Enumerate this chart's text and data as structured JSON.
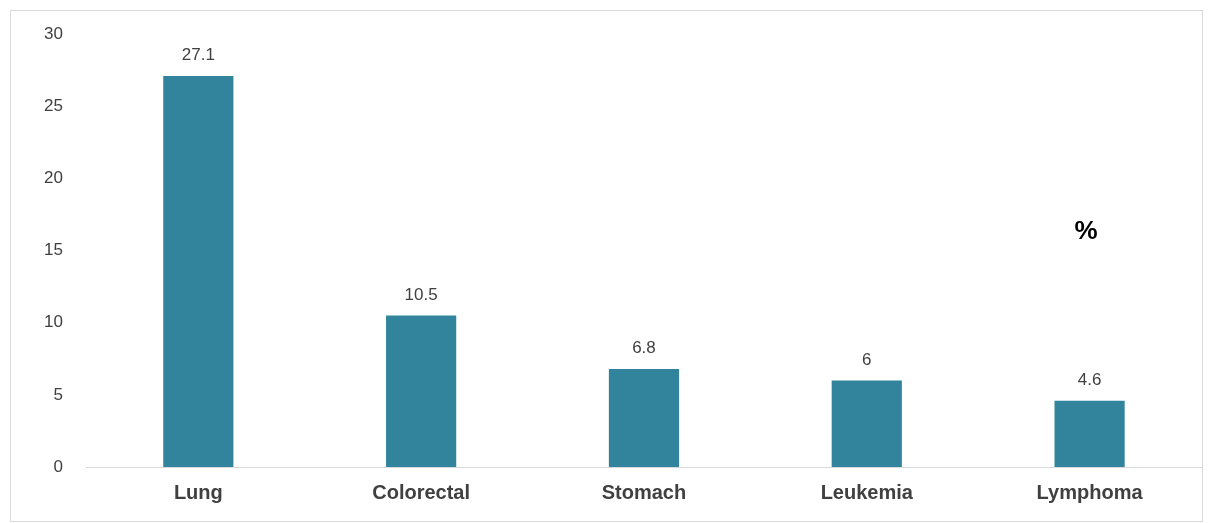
{
  "chart_data": {
    "type": "bar",
    "categories": [
      "Lung",
      "Colorectal",
      "Stomach",
      "Leukemia",
      "Lymphoma"
    ],
    "values": [
      27.1,
      10.5,
      6.8,
      6,
      4.6
    ],
    "color": "#31849b",
    "ylim": [
      0,
      30
    ],
    "yticks": [
      0,
      5,
      10,
      15,
      20,
      25,
      30
    ],
    "grid": false,
    "legend": false,
    "data_labels": true,
    "annotations": [
      "%"
    ]
  }
}
